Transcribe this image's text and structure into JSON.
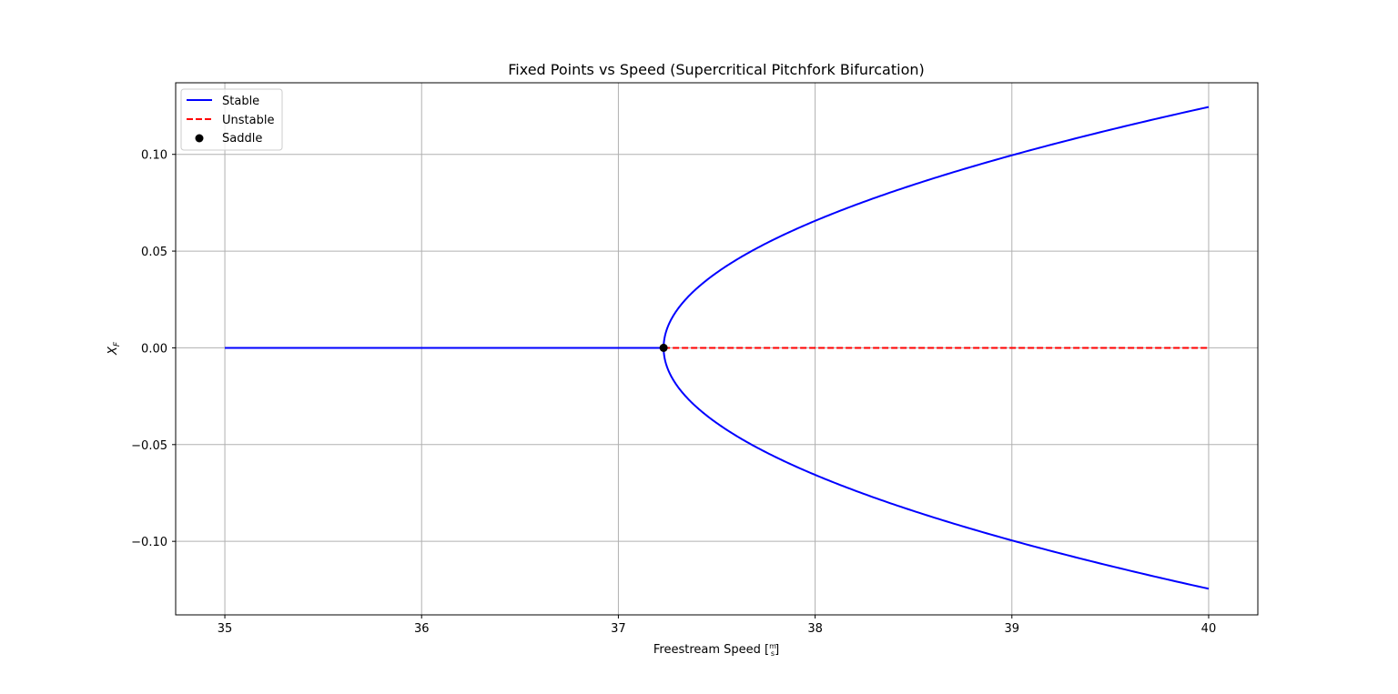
{
  "chart_data": {
    "type": "line",
    "title": "Fixed Points vs Speed (Supercritical Pitchfork Bifurcation)",
    "xlabel": {
      "text": "Freestream Speed [",
      "frac_num": "m",
      "frac_den": "s",
      "close": "]"
    },
    "ylabel": {
      "main": "X",
      "sub": "F"
    },
    "xlim": [
      34.75,
      40.25
    ],
    "ylim": [
      -0.138,
      0.137
    ],
    "xticks": [
      35,
      36,
      37,
      38,
      39,
      40
    ],
    "xtick_labels": [
      "35",
      "36",
      "37",
      "38",
      "39",
      "40"
    ],
    "yticks": [
      0.1,
      0.05,
      0.0,
      -0.05,
      -0.1
    ],
    "ytick_labels": [
      "0.10",
      "0.05",
      "0.00",
      "−0.05",
      "−0.10"
    ],
    "grid": true,
    "legend_position": "top-left",
    "bifurcation_speed": 37.23,
    "branch_amplitude_at_40": 0.1245,
    "series": [
      {
        "name": "Stable",
        "style": "solid",
        "color": "#0000ff",
        "segments": [
          {
            "x": [
              35.0,
              37.23
            ],
            "y": [
              0.0,
              0.0
            ]
          },
          {
            "x": [
              37.23,
              37.24,
              37.26,
              37.3,
              37.4,
              37.5,
              37.6,
              37.8,
              38.0,
              38.2,
              38.4,
              38.6,
              38.8,
              39.0,
              39.2,
              39.4,
              39.6,
              39.8,
              40.0
            ],
            "y": [
              0.0,
              0.0075,
              0.013,
              0.0199,
              0.0309,
              0.0389,
              0.0456,
              0.0565,
              0.0655,
              0.0733,
              0.0802,
              0.0866,
              0.0925,
              0.0979,
              0.1031,
              0.108,
              0.1126,
              0.1171,
              0.1245
            ]
          },
          {
            "x": [
              37.23,
              37.24,
              37.26,
              37.3,
              37.4,
              37.5,
              37.6,
              37.8,
              38.0,
              38.2,
              38.4,
              38.6,
              38.8,
              39.0,
              39.2,
              39.4,
              39.6,
              39.8,
              40.0
            ],
            "y": [
              0.0,
              -0.0075,
              -0.013,
              -0.0199,
              -0.0309,
              -0.0389,
              -0.0456,
              -0.0565,
              -0.0655,
              -0.0733,
              -0.0802,
              -0.0866,
              -0.0925,
              -0.0979,
              -0.1031,
              -0.108,
              -0.1126,
              -0.1171,
              -0.1245
            ]
          }
        ]
      },
      {
        "name": "Unstable",
        "style": "dashed",
        "color": "#ff0000",
        "segments": [
          {
            "x": [
              37.23,
              40.0
            ],
            "y": [
              0.0,
              0.0
            ]
          }
        ]
      },
      {
        "name": "Saddle",
        "style": "marker",
        "color": "#000000",
        "points": [
          {
            "x": 37.23,
            "y": 0.0
          }
        ]
      }
    ]
  }
}
